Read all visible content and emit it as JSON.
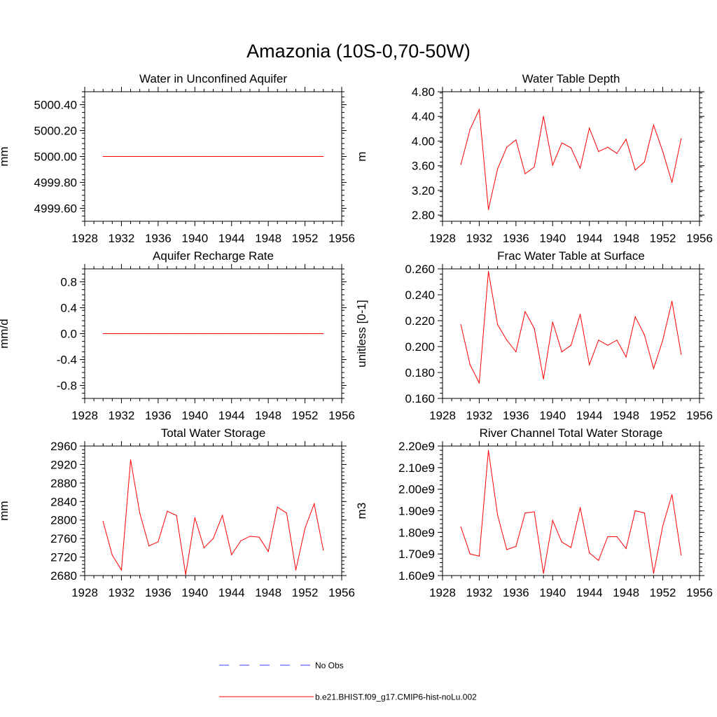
{
  "figure": {
    "title": "Amazonia (10S-0,70-50W)"
  },
  "legend": {
    "entries": [
      {
        "label": "No Obs",
        "color": "#3b3bff",
        "style": "dashed"
      },
      {
        "label": "b.e21.BHIST.f09_g17.CMIP6-hist-noLu.002",
        "color": "#ff0000",
        "style": "solid"
      }
    ]
  },
  "chart_data": [
    {
      "type": "line",
      "title": "Water in Unconfined Aquifer",
      "ylabel": "mm",
      "xlim": [
        1928,
        1956
      ],
      "ylim": [
        4999.5,
        5000.5
      ],
      "x_ticks": [
        "1928",
        "1932",
        "1936",
        "1940",
        "1944",
        "1948",
        "1952",
        "1956"
      ],
      "y_ticks": [
        {
          "value": 4999.6,
          "label": "4999.60"
        },
        {
          "value": 4999.8,
          "label": "4999.80"
        },
        {
          "value": 5000.0,
          "label": "5000.00"
        },
        {
          "value": 5000.2,
          "label": "5000.20"
        },
        {
          "value": 5000.4,
          "label": "5000.40"
        }
      ],
      "x": [
        1930,
        1931,
        1932,
        1933,
        1934,
        1935,
        1936,
        1937,
        1938,
        1939,
        1940,
        1941,
        1942,
        1943,
        1944,
        1945,
        1946,
        1947,
        1948,
        1949,
        1950,
        1951,
        1952,
        1953,
        1954
      ],
      "series": [
        {
          "color": "#ff0000",
          "values": [
            5000,
            5000,
            5000,
            5000,
            5000,
            5000,
            5000,
            5000,
            5000,
            5000,
            5000,
            5000,
            5000,
            5000,
            5000,
            5000,
            5000,
            5000,
            5000,
            5000,
            5000,
            5000,
            5000,
            5000,
            5000
          ]
        }
      ]
    },
    {
      "type": "line",
      "title": "Water Table Depth",
      "ylabel": "m",
      "xlim": [
        1928,
        1956
      ],
      "ylim": [
        2.7,
        4.8
      ],
      "x_ticks": [
        "1928",
        "1932",
        "1936",
        "1940",
        "1944",
        "1948",
        "1952",
        "1956"
      ],
      "y_ticks": [
        {
          "value": 2.8,
          "label": "2.80"
        },
        {
          "value": 3.2,
          "label": "3.20"
        },
        {
          "value": 3.6,
          "label": "3.60"
        },
        {
          "value": 4.0,
          "label": "4.00"
        },
        {
          "value": 4.4,
          "label": "4.40"
        },
        {
          "value": 4.8,
          "label": "4.80"
        }
      ],
      "x": [
        1930,
        1931,
        1932,
        1933,
        1934,
        1935,
        1936,
        1937,
        1938,
        1939,
        1940,
        1941,
        1942,
        1943,
        1944,
        1945,
        1946,
        1947,
        1948,
        1949,
        1950,
        1951,
        1952,
        1953,
        1954
      ],
      "series": [
        {
          "color": "#ff0000",
          "values": [
            3.62,
            4.19,
            4.51,
            2.89,
            3.55,
            3.9,
            4.02,
            3.47,
            3.58,
            4.4,
            3.61,
            3.97,
            3.89,
            3.56,
            4.21,
            3.83,
            3.9,
            3.8,
            4.03,
            3.53,
            3.66,
            4.26,
            3.83,
            3.33,
            4.04
          ]
        }
      ]
    },
    {
      "type": "line",
      "title": "Aquifer Recharge Rate",
      "ylabel": "mm/d",
      "xlim": [
        1928,
        1956
      ],
      "ylim": [
        -1.0,
        1.0
      ],
      "x_ticks": [
        "1928",
        "1932",
        "1936",
        "1940",
        "1944",
        "1948",
        "1952",
        "1956"
      ],
      "y_ticks": [
        {
          "value": -0.8,
          "label": "-0.8"
        },
        {
          "value": -0.4,
          "label": "-0.4"
        },
        {
          "value": 0.0,
          "label": "0.0"
        },
        {
          "value": 0.4,
          "label": "0.4"
        },
        {
          "value": 0.8,
          "label": "0.8"
        }
      ],
      "x": [
        1930,
        1931,
        1932,
        1933,
        1934,
        1935,
        1936,
        1937,
        1938,
        1939,
        1940,
        1941,
        1942,
        1943,
        1944,
        1945,
        1946,
        1947,
        1948,
        1949,
        1950,
        1951,
        1952,
        1953,
        1954
      ],
      "series": [
        {
          "color": "#ff0000",
          "values": [
            0,
            0,
            0,
            0,
            0,
            0,
            0,
            0,
            0,
            0,
            0,
            0,
            0,
            0,
            0,
            0,
            0,
            0,
            0,
            0,
            0,
            0,
            0,
            0,
            0
          ]
        }
      ]
    },
    {
      "type": "line",
      "title": "Frac Water Table at Surface",
      "ylabel": "unitless [0-1]",
      "xlim": [
        1928,
        1956
      ],
      "ylim": [
        0.16,
        0.26
      ],
      "x_ticks": [
        "1928",
        "1932",
        "1936",
        "1940",
        "1944",
        "1948",
        "1952",
        "1956"
      ],
      "y_ticks": [
        {
          "value": 0.16,
          "label": "0.160"
        },
        {
          "value": 0.18,
          "label": "0.180"
        },
        {
          "value": 0.2,
          "label": "0.200"
        },
        {
          "value": 0.22,
          "label": "0.220"
        },
        {
          "value": 0.24,
          "label": "0.240"
        },
        {
          "value": 0.26,
          "label": "0.260"
        }
      ],
      "x": [
        1930,
        1931,
        1932,
        1933,
        1934,
        1935,
        1936,
        1937,
        1938,
        1939,
        1940,
        1941,
        1942,
        1943,
        1944,
        1945,
        1946,
        1947,
        1948,
        1949,
        1950,
        1951,
        1952,
        1953,
        1954
      ],
      "series": [
        {
          "color": "#ff0000",
          "values": [
            0.217,
            0.186,
            0.172,
            0.258,
            0.217,
            0.205,
            0.196,
            0.227,
            0.214,
            0.175,
            0.219,
            0.196,
            0.201,
            0.225,
            0.186,
            0.205,
            0.201,
            0.205,
            0.192,
            0.223,
            0.209,
            0.183,
            0.205,
            0.235,
            0.194
          ]
        }
      ]
    },
    {
      "type": "line",
      "title": "Total Water Storage",
      "ylabel": "mm",
      "xlim": [
        1928,
        1956
      ],
      "ylim": [
        2680,
        2960
      ],
      "x_ticks": [
        "1928",
        "1932",
        "1936",
        "1940",
        "1944",
        "1948",
        "1952",
        "1956"
      ],
      "y_ticks": [
        {
          "value": 2680,
          "label": "2680"
        },
        {
          "value": 2720,
          "label": "2720"
        },
        {
          "value": 2760,
          "label": "2760"
        },
        {
          "value": 2800,
          "label": "2800"
        },
        {
          "value": 2840,
          "label": "2840"
        },
        {
          "value": 2880,
          "label": "2880"
        },
        {
          "value": 2920,
          "label": "2920"
        },
        {
          "value": 2960,
          "label": "2960"
        }
      ],
      "x": [
        1930,
        1931,
        1932,
        1933,
        1934,
        1935,
        1936,
        1937,
        1938,
        1939,
        1940,
        1941,
        1942,
        1943,
        1944,
        1945,
        1946,
        1947,
        1948,
        1949,
        1950,
        1951,
        1952,
        1953,
        1954
      ],
      "series": [
        {
          "color": "#ff0000",
          "values": [
            2797,
            2724,
            2692,
            2930,
            2815,
            2744,
            2753,
            2819,
            2810,
            2682,
            2805,
            2740,
            2760,
            2810,
            2725,
            2755,
            2765,
            2763,
            2732,
            2828,
            2815,
            2692,
            2782,
            2835,
            2735
          ]
        }
      ]
    },
    {
      "type": "line",
      "title": "River Channel Total Water Storage",
      "ylabel": "m3",
      "xlim": [
        1928,
        1956
      ],
      "ylim": [
        1600000000.0,
        2200000000.0
      ],
      "x_ticks": [
        "1928",
        "1932",
        "1936",
        "1940",
        "1944",
        "1948",
        "1952",
        "1956"
      ],
      "y_ticks": [
        {
          "value": 1600000000.0,
          "label": "1.60e9"
        },
        {
          "value": 1700000000.0,
          "label": "1.70e9"
        },
        {
          "value": 1800000000.0,
          "label": "1.80e9"
        },
        {
          "value": 1900000000.0,
          "label": "1.90e9"
        },
        {
          "value": 2000000000.0,
          "label": "2.00e9"
        },
        {
          "value": 2100000000.0,
          "label": "2.10e9"
        },
        {
          "value": 2200000000.0,
          "label": "2.20e9"
        }
      ],
      "x": [
        1930,
        1931,
        1932,
        1933,
        1934,
        1935,
        1936,
        1937,
        1938,
        1939,
        1940,
        1941,
        1942,
        1943,
        1944,
        1945,
        1946,
        1947,
        1948,
        1949,
        1950,
        1951,
        1952,
        1953,
        1954
      ],
      "series": [
        {
          "color": "#ff0000",
          "values": [
            1825000000.0,
            1700000000.0,
            1690000000.0,
            2180000000.0,
            1880000000.0,
            1720000000.0,
            1735000000.0,
            1890000000.0,
            1895000000.0,
            1610000000.0,
            1855000000.0,
            1755000000.0,
            1730000000.0,
            1915000000.0,
            1705000000.0,
            1670000000.0,
            1780000000.0,
            1780000000.0,
            1725000000.0,
            1900000000.0,
            1890000000.0,
            1610000000.0,
            1830000000.0,
            1975000000.0,
            1695000000.0
          ]
        }
      ]
    }
  ]
}
